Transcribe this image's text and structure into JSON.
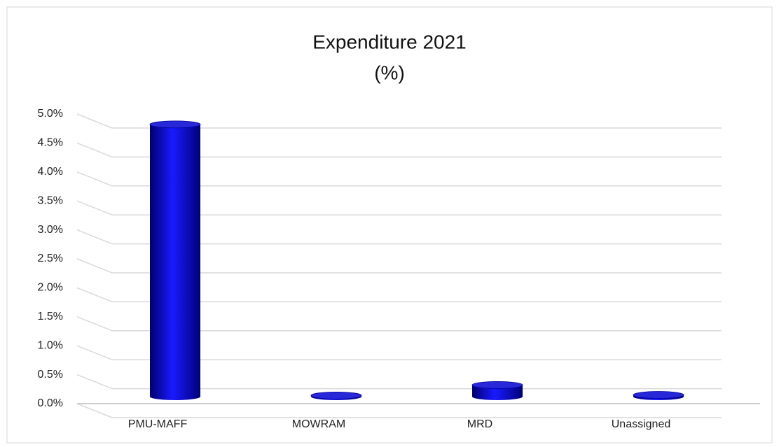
{
  "chart_data": {
    "type": "bar3d",
    "title": "Expenditure 2021",
    "subtitle": "(%)",
    "categories": [
      "PMU-MAFF",
      "MOWRAM",
      "MRD",
      "Unassigned"
    ],
    "values": [
      4.7,
      0.02,
      0.2,
      0.03
    ],
    "color": "#1010e0",
    "ylim": [
      0,
      5
    ],
    "yticks": [
      {
        "value": 0,
        "label": "0.0%"
      },
      {
        "value": 0.5,
        "label": "0.5%"
      },
      {
        "value": 1,
        "label": "1.0%"
      },
      {
        "value": 1.5,
        "label": "1.5%"
      },
      {
        "value": 2,
        "label": "2.0%"
      },
      {
        "value": 2.5,
        "label": "2.5%"
      },
      {
        "value": 3,
        "label": "3.0%"
      },
      {
        "value": 3.5,
        "label": "3.5%"
      },
      {
        "value": 4,
        "label": "4.0%"
      },
      {
        "value": 4.5,
        "label": "4.5%"
      },
      {
        "value": 5,
        "label": "5.0%"
      }
    ],
    "grid": true
  }
}
